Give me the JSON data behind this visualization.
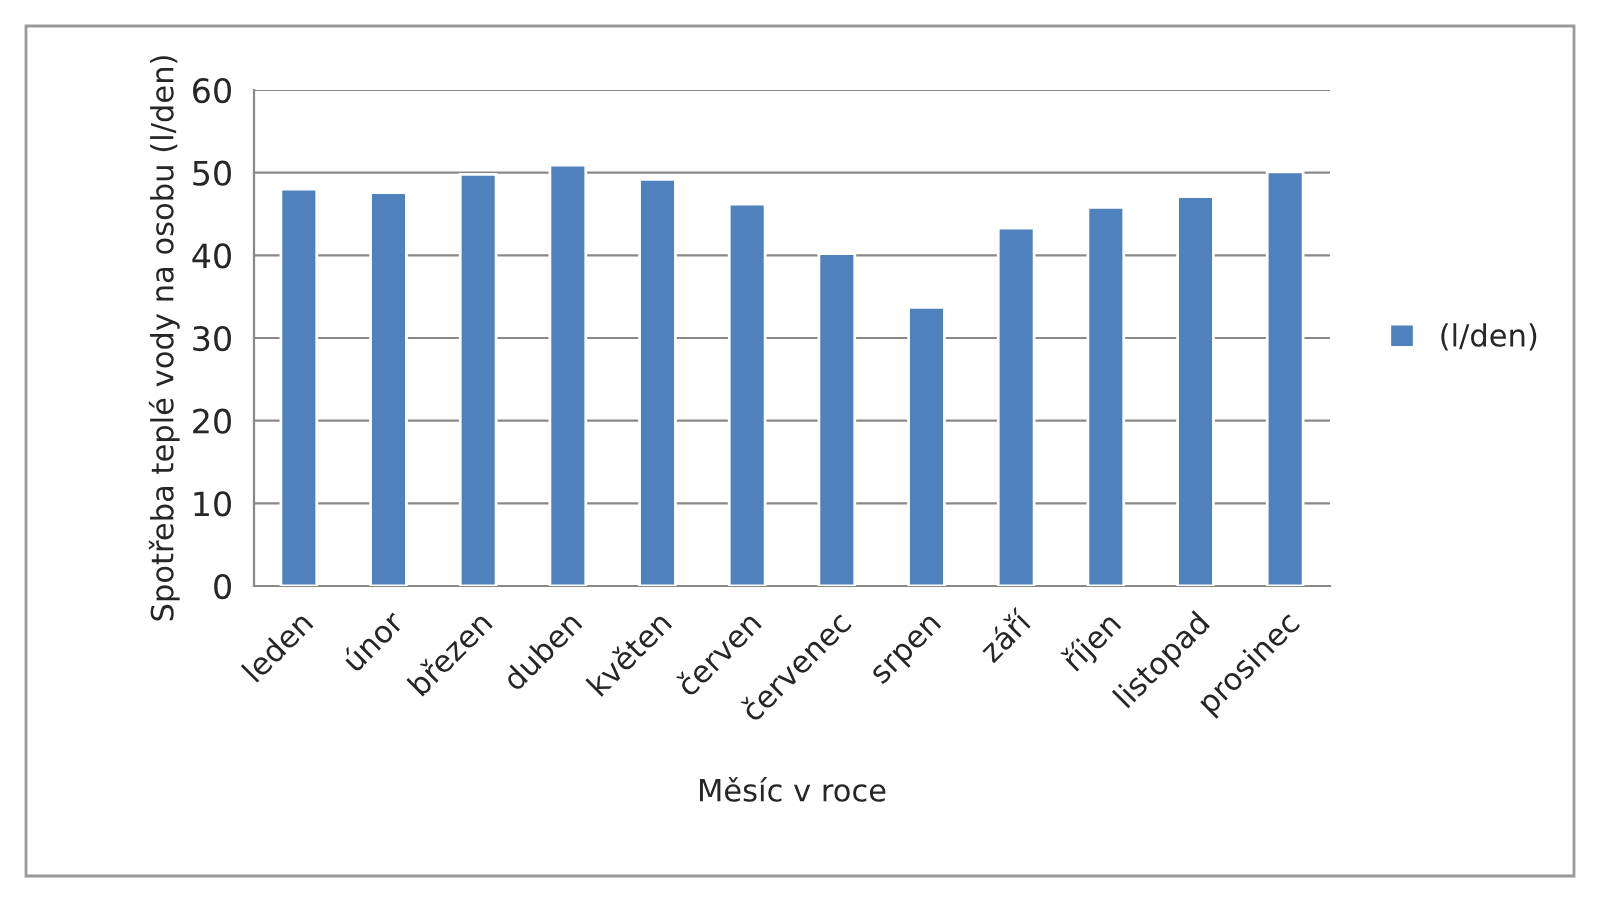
{
  "chart_data": {
    "type": "bar",
    "xlabel": "Měsíc v roce",
    "ylabel": "Spotřeba teplé vody na osobu (l/den)",
    "categories": [
      "leden",
      "únor",
      "březen",
      "duben",
      "květen",
      "červen",
      "červenec",
      "srpen",
      "září",
      "říjen",
      "listopad",
      "prosinec"
    ],
    "series": [
      {
        "name": "(l/den)",
        "color": "#4f81bd",
        "values": [
          48.0,
          47.6,
          49.8,
          50.9,
          49.2,
          46.2,
          40.2,
          33.7,
          43.3,
          45.8,
          47.1,
          50.1
        ]
      }
    ],
    "ylim": [
      0,
      60
    ],
    "yticks": [
      0,
      10,
      20,
      30,
      40,
      50,
      60
    ],
    "grid": "y",
    "legend": "right"
  }
}
